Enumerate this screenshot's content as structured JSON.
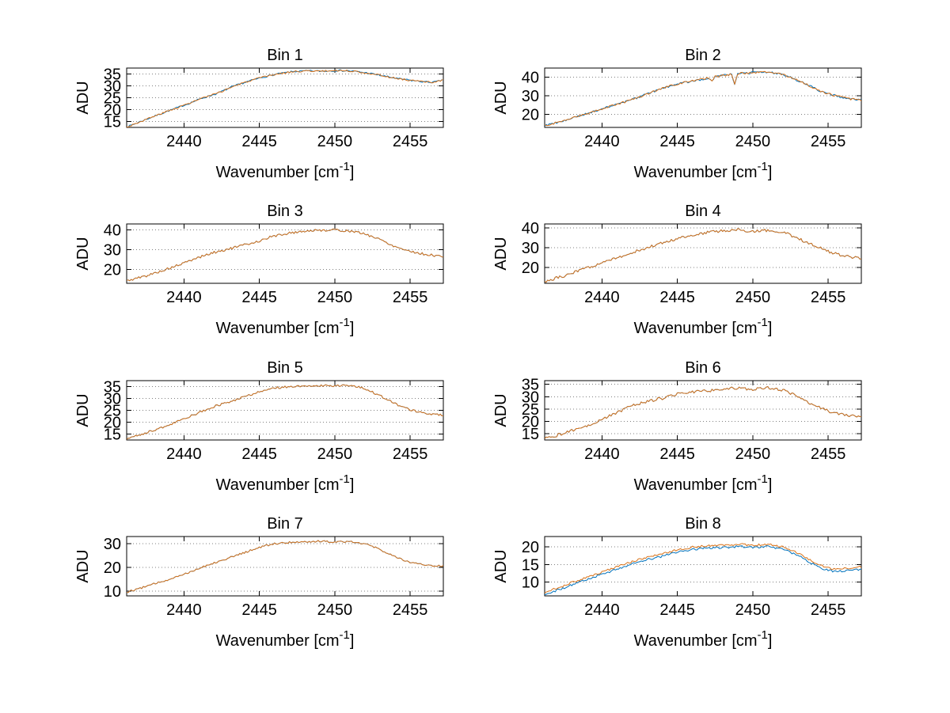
{
  "figure": {
    "background": "#ffffff",
    "ylabel": "ADU",
    "xlabel": {
      "prefix": "Wavenumber [cm",
      "sup": "-1",
      "suffix": "]"
    },
    "xticks": [
      2440,
      2445,
      2450,
      2455
    ],
    "xlim": [
      2436.2,
      2457.2
    ],
    "axis_color": "#000000",
    "grid_color": "#808080",
    "series_colors": {
      "blue": "#0072bd",
      "orange": "#d9731a"
    }
  },
  "chart_data": [
    {
      "type": "line",
      "title": "Bin 1",
      "ylim": [
        12.5,
        37.5
      ],
      "yticks": [
        15,
        20,
        25,
        30,
        35
      ],
      "envelope": [
        [
          2436.2,
          12.6
        ],
        [
          2437.2,
          15.2
        ],
        [
          2438.2,
          17.6
        ],
        [
          2439.2,
          20.0
        ],
        [
          2440.2,
          22.3
        ],
        [
          2441.2,
          24.8
        ],
        [
          2442.2,
          26.8
        ],
        [
          2443.2,
          29.6
        ],
        [
          2444.2,
          31.8
        ],
        [
          2445.2,
          33.6
        ],
        [
          2446.2,
          35.0
        ],
        [
          2447.2,
          36.0
        ],
        [
          2448.2,
          36.3
        ],
        [
          2449.2,
          36.2
        ],
        [
          2450.2,
          36.5
        ],
        [
          2451.2,
          36.2
        ],
        [
          2452.2,
          35.4
        ],
        [
          2453.2,
          34.2
        ],
        [
          2454.2,
          33.0
        ],
        [
          2455.2,
          32.2
        ],
        [
          2455.9,
          31.7
        ],
        [
          2456.5,
          31.5
        ],
        [
          2457.2,
          32.4
        ]
      ],
      "dips": [],
      "series": [
        {
          "name": "trace-blue",
          "color": "#0072bd",
          "dy": 0,
          "noise": 0.35,
          "seed": 7
        },
        {
          "name": "trace-orange",
          "color": "#d9731a",
          "dy": 0,
          "noise": 0.35,
          "seed": 3
        }
      ]
    },
    {
      "type": "line",
      "title": "Bin 2",
      "ylim": [
        13,
        45
      ],
      "yticks": [
        20,
        30,
        40
      ],
      "envelope": [
        [
          2436.2,
          14.0
        ],
        [
          2437.5,
          16.5
        ],
        [
          2439,
          20.5
        ],
        [
          2440,
          23.0
        ],
        [
          2441,
          25.5
        ],
        [
          2442,
          28.0
        ],
        [
          2443,
          31.0
        ],
        [
          2444,
          34.0
        ],
        [
          2445,
          36.5
        ],
        [
          2446,
          38.0
        ],
        [
          2447,
          39.5
        ],
        [
          2448,
          41.0
        ],
        [
          2449,
          42.0
        ],
        [
          2450,
          42.5
        ],
        [
          2451,
          42.8
        ],
        [
          2451.8,
          42.0
        ],
        [
          2452.5,
          40.0
        ],
        [
          2453.5,
          36.5
        ],
        [
          2454.5,
          32.5
        ],
        [
          2455.5,
          30.0
        ],
        [
          2456.3,
          28.5
        ],
        [
          2457.2,
          27.6
        ]
      ],
      "dips": [
        {
          "x": 2448.8,
          "depth": 5.5,
          "width": 0.12
        },
        {
          "x": 2447.3,
          "depth": 2.2,
          "width": 0.1
        }
      ],
      "series": [
        {
          "name": "trace-blue",
          "color": "#0072bd",
          "dy": 0,
          "noise": 0.55,
          "seed": 9
        },
        {
          "name": "trace-orange",
          "color": "#d9731a",
          "dy": 0,
          "noise": 0.55,
          "seed": 4
        }
      ]
    },
    {
      "type": "line",
      "title": "Bin 3",
      "ylim": [
        13,
        43
      ],
      "yticks": [
        20,
        30,
        40
      ],
      "envelope": [
        [
          2436.2,
          14.2
        ],
        [
          2437.5,
          16.8
        ],
        [
          2439,
          20.5
        ],
        [
          2440,
          23.2
        ],
        [
          2441,
          26.2
        ],
        [
          2442,
          28.6
        ],
        [
          2443,
          30.4
        ],
        [
          2444,
          32.4
        ],
        [
          2445,
          34.4
        ],
        [
          2445.8,
          36.6
        ],
        [
          2447,
          38.4
        ],
        [
          2448,
          39.4
        ],
        [
          2449,
          39.8
        ],
        [
          2450,
          40.0
        ],
        [
          2451,
          39.4
        ],
        [
          2452,
          38.0
        ],
        [
          2453,
          35.2
        ],
        [
          2454,
          31.6
        ],
        [
          2455,
          29.2
        ],
        [
          2456,
          27.6
        ],
        [
          2457.2,
          26.6
        ]
      ],
      "dips": [],
      "series": [
        {
          "name": "trace-blue",
          "color": "#0072bd",
          "dy": 0,
          "noise": 0.6,
          "seed": 5
        },
        {
          "name": "trace-orange",
          "color": "#d9731a",
          "dy": 0,
          "noise": 0.6,
          "seed": 5
        }
      ]
    },
    {
      "type": "line",
      "title": "Bin 4",
      "ylim": [
        12,
        42
      ],
      "yticks": [
        20,
        30,
        40
      ],
      "envelope": [
        [
          2436.2,
          13.0
        ],
        [
          2437.5,
          15.8
        ],
        [
          2439,
          19.6
        ],
        [
          2440,
          22.2
        ],
        [
          2441,
          25.0
        ],
        [
          2442,
          27.6
        ],
        [
          2443,
          30.0
        ],
        [
          2444,
          32.4
        ],
        [
          2445,
          34.6
        ],
        [
          2446,
          36.4
        ],
        [
          2447,
          37.8
        ],
        [
          2448,
          38.6
        ],
        [
          2449,
          39.0
        ],
        [
          2449.8,
          38.0
        ],
        [
          2450.6,
          38.8
        ],
        [
          2451.4,
          38.4
        ],
        [
          2452.2,
          37.2
        ],
        [
          2453,
          34.8
        ],
        [
          2454,
          31.2
        ],
        [
          2455,
          28.2
        ],
        [
          2456,
          25.8
        ],
        [
          2457.2,
          24.6
        ]
      ],
      "dips": [],
      "series": [
        {
          "name": "trace-blue",
          "color": "#0072bd",
          "dy": 0,
          "noise": 0.7,
          "seed": 6
        },
        {
          "name": "trace-orange",
          "color": "#d9731a",
          "dy": 0,
          "noise": 0.7,
          "seed": 6
        }
      ]
    },
    {
      "type": "line",
      "title": "Bin 5",
      "ylim": [
        12.5,
        37.5
      ],
      "yticks": [
        15,
        20,
        25,
        30,
        35
      ],
      "envelope": [
        [
          2436.2,
          13.0
        ],
        [
          2437.5,
          15.6
        ],
        [
          2439,
          18.8
        ],
        [
          2440,
          21.4
        ],
        [
          2441,
          24.0
        ],
        [
          2442,
          26.6
        ],
        [
          2443,
          28.6
        ],
        [
          2444,
          30.6
        ],
        [
          2445,
          32.8
        ],
        [
          2446,
          34.4
        ],
        [
          2447,
          35.0
        ],
        [
          2448,
          35.3
        ],
        [
          2449,
          35.5
        ],
        [
          2450,
          35.3
        ],
        [
          2451,
          35.5
        ],
        [
          2452,
          34.2
        ],
        [
          2453,
          31.2
        ],
        [
          2454,
          27.8
        ],
        [
          2455,
          25.2
        ],
        [
          2456,
          23.6
        ],
        [
          2457.2,
          22.9
        ]
      ],
      "dips": [],
      "series": [
        {
          "name": "trace-blue",
          "color": "#0072bd",
          "dy": 0,
          "noise": 0.45,
          "seed": 8
        },
        {
          "name": "trace-orange",
          "color": "#d9731a",
          "dy": 0,
          "noise": 0.45,
          "seed": 8
        }
      ]
    },
    {
      "type": "line",
      "title": "Bin 6",
      "ylim": [
        12.5,
        36.5
      ],
      "yticks": [
        15,
        20,
        25,
        30,
        35
      ],
      "envelope": [
        [
          2436.2,
          13.0
        ],
        [
          2437.5,
          15.2
        ],
        [
          2439,
          18.4
        ],
        [
          2440,
          20.8
        ],
        [
          2441,
          23.6
        ],
        [
          2442,
          26.6
        ],
        [
          2443,
          28.0
        ],
        [
          2444,
          29.4
        ],
        [
          2445,
          31.0
        ],
        [
          2446,
          32.0
        ],
        [
          2447,
          32.4
        ],
        [
          2448,
          33.0
        ],
        [
          2449,
          33.6
        ],
        [
          2450,
          33.0
        ],
        [
          2451,
          33.6
        ],
        [
          2452,
          32.6
        ],
        [
          2453,
          30.2
        ],
        [
          2454,
          26.8
        ],
        [
          2455,
          24.2
        ],
        [
          2456,
          22.6
        ],
        [
          2457.2,
          21.9
        ]
      ],
      "dips": [],
      "series": [
        {
          "name": "trace-blue",
          "color": "#0072bd",
          "dy": 0,
          "noise": 0.6,
          "seed": 10
        },
        {
          "name": "trace-orange",
          "color": "#d9731a",
          "dy": 0,
          "noise": 0.6,
          "seed": 10
        }
      ]
    },
    {
      "type": "line",
      "title": "Bin 7",
      "ylim": [
        8,
        33
      ],
      "yticks": [
        10,
        20,
        30
      ],
      "envelope": [
        [
          2436.2,
          9.6
        ],
        [
          2437.5,
          12.0
        ],
        [
          2439,
          15.0
        ],
        [
          2440,
          17.2
        ],
        [
          2441,
          19.6
        ],
        [
          2442,
          22.0
        ],
        [
          2443,
          24.0
        ],
        [
          2444,
          26.2
        ],
        [
          2445,
          28.4
        ],
        [
          2446,
          30.0
        ],
        [
          2447,
          30.6
        ],
        [
          2448,
          30.8
        ],
        [
          2449,
          31.0
        ],
        [
          2450,
          30.8
        ],
        [
          2451,
          31.0
        ],
        [
          2452,
          30.0
        ],
        [
          2453,
          27.6
        ],
        [
          2454,
          24.4
        ],
        [
          2455,
          22.2
        ],
        [
          2456,
          20.9
        ],
        [
          2457.2,
          20.6
        ]
      ],
      "dips": [],
      "series": [
        {
          "name": "trace-blue",
          "color": "#0072bd",
          "dy": 0,
          "noise": 0.4,
          "seed": 12
        },
        {
          "name": "trace-orange",
          "color": "#d9731a",
          "dy": 0,
          "noise": 0.4,
          "seed": 12
        }
      ]
    },
    {
      "type": "line",
      "title": "Bin 8",
      "ylim": [
        6,
        23
      ],
      "yticks": [
        10,
        15,
        20
      ],
      "envelope": [
        [
          2436.2,
          7.0
        ],
        [
          2437.5,
          9.0
        ],
        [
          2439,
          11.4
        ],
        [
          2440,
          12.8
        ],
        [
          2441,
          14.4
        ],
        [
          2442,
          15.8
        ],
        [
          2443,
          17.0
        ],
        [
          2444,
          18.0
        ],
        [
          2445,
          19.2
        ],
        [
          2446,
          20.0
        ],
        [
          2447,
          20.3
        ],
        [
          2448,
          20.5
        ],
        [
          2449,
          20.8
        ],
        [
          2450,
          20.5
        ],
        [
          2451,
          20.8
        ],
        [
          2452,
          20.0
        ],
        [
          2453,
          18.2
        ],
        [
          2454,
          15.8
        ],
        [
          2454.8,
          14.2
        ],
        [
          2455.5,
          13.6
        ],
        [
          2456.2,
          13.9
        ],
        [
          2457.2,
          14.3
        ]
      ],
      "dips": [],
      "series": [
        {
          "name": "trace-blue",
          "color": "#0072bd",
          "dy": -0.65,
          "noise": 0.3,
          "seed": 14
        },
        {
          "name": "trace-orange",
          "color": "#d9731a",
          "dy": 0,
          "noise": 0.3,
          "seed": 15
        }
      ]
    }
  ]
}
